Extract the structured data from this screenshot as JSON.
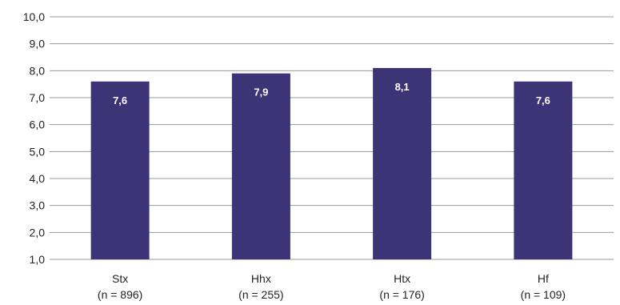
{
  "chart_data": {
    "type": "bar",
    "categories": [
      "Stx",
      "Hhx",
      "Htx",
      "Hf"
    ],
    "category_sublabels": [
      "(n = 896)",
      "(n = 255)",
      "(n = 176)",
      "(n = 109)"
    ],
    "values": [
      7.6,
      7.9,
      8.1,
      7.6
    ],
    "data_labels": [
      "7,6",
      "7,9",
      "8,1",
      "7,6"
    ],
    "title": "",
    "xlabel": "",
    "ylabel": "",
    "ylim": [
      1.0,
      10.0
    ],
    "yticks": [
      1.0,
      2.0,
      3.0,
      4.0,
      5.0,
      6.0,
      7.0,
      8.0,
      9.0,
      10.0
    ],
    "ytick_labels": [
      "1,0",
      "2,0",
      "3,0",
      "4,0",
      "5,0",
      "6,0",
      "7,0",
      "8,0",
      "9,0",
      "10,0"
    ],
    "grid": true,
    "legend": "none",
    "bar_color": "#3d3478",
    "grid_color": "#999999"
  }
}
